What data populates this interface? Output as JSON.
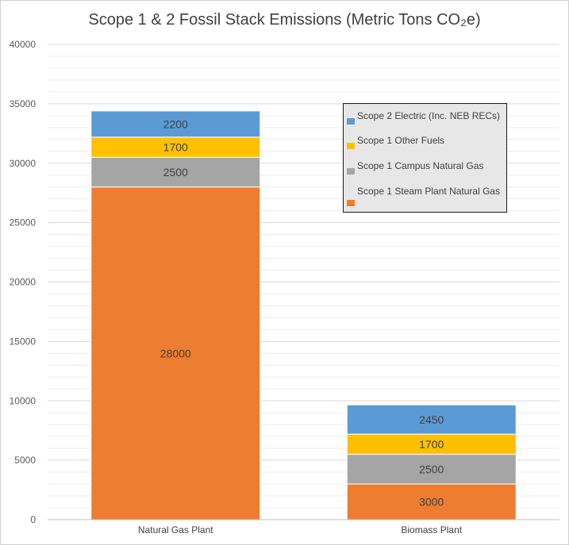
{
  "chart_data": {
    "type": "bar",
    "stacked": true,
    "title": "Scope 1 & 2 Fossil Stack Emissions (Metric Tons CO₂e)",
    "xlabel": "",
    "ylabel": "",
    "categories": [
      "Natural Gas Plant",
      "Biomass Plant"
    ],
    "ylim": [
      0,
      40000
    ],
    "yticks": [
      0,
      5000,
      10000,
      15000,
      20000,
      25000,
      30000,
      35000,
      40000
    ],
    "grid": true,
    "legend_position": "top-right",
    "series": [
      {
        "name": "Scope 1 Steam Plant Natural Gas",
        "color": "#ED7D31",
        "values": [
          28000,
          3000
        ]
      },
      {
        "name": "Scope 1 Campus Natural Gas",
        "color": "#A5A5A5",
        "values": [
          2500,
          2500
        ]
      },
      {
        "name": "Scope 1 Other Fuels",
        "color": "#FFC000",
        "values": [
          1700,
          1700
        ]
      },
      {
        "name": "Scope 2 Electric (Inc. NEB RECs)",
        "color": "#5B9BD5",
        "values": [
          2200,
          2450
        ]
      }
    ],
    "legend_order": [
      "Scope 2 Electric (Inc. NEB RECs)",
      "Scope 1 Other Fuels",
      "Scope 1 Campus Natural Gas",
      "Scope 1 Steam Plant Natural Gas"
    ]
  }
}
